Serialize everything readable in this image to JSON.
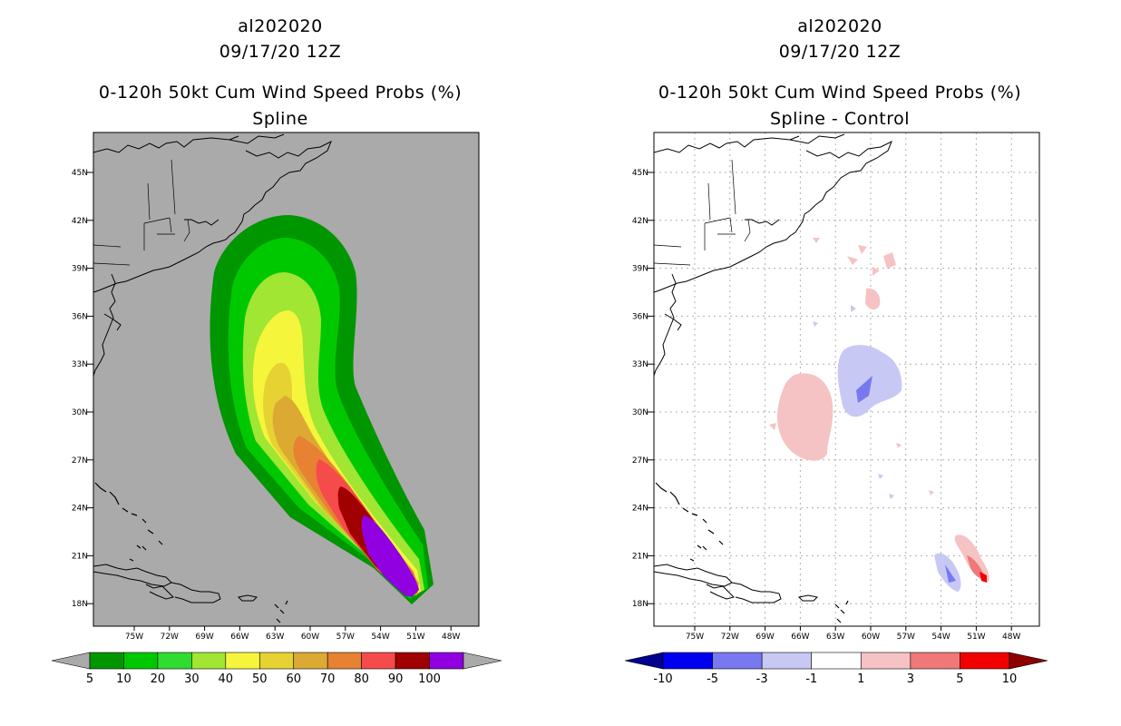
{
  "panels": [
    {
      "storm_id": "al202020",
      "datetime": "09/17/20 12Z",
      "product": "0-120h 50kt Cum Wind Speed Probs (%)",
      "subtitle": "Spline",
      "background": "#aaaaaa",
      "colorbar_labels": [
        "5",
        "10",
        "20",
        "30",
        "40",
        "50",
        "60",
        "70",
        "80",
        "90",
        "100"
      ],
      "colorbar_colors": [
        "#009600",
        "#00c800",
        "#30dc30",
        "#a0e632",
        "#f5f53c",
        "#e6d232",
        "#dcaa32",
        "#e68232",
        "#f54b4b",
        "#a00000",
        "#9000e0"
      ]
    },
    {
      "storm_id": "al202020",
      "datetime": "09/17/20 12Z",
      "product": "0-120h 50kt Cum Wind Speed Probs (%)",
      "subtitle": "Spline - Control",
      "background": "#ffffff",
      "colorbar_labels": [
        "-10",
        "-5",
        "-3",
        "-1",
        "1",
        "3",
        "5",
        "10"
      ],
      "colorbar_colors": [
        "#00008c",
        "#0000f0",
        "#7878f0",
        "#c8c8f5",
        "#ffffff",
        "#f5c3c3",
        "#f07878",
        "#f00000",
        "#8c0000"
      ]
    }
  ],
  "axes": {
    "lat_labels": [
      "45N",
      "42N",
      "39N",
      "36N",
      "33N",
      "30N",
      "27N",
      "24N",
      "21N",
      "18N"
    ],
    "lon_labels": [
      "75W",
      "72W",
      "69W",
      "66W",
      "63W",
      "60W",
      "57W",
      "54W",
      "51W",
      "48W"
    ]
  }
}
